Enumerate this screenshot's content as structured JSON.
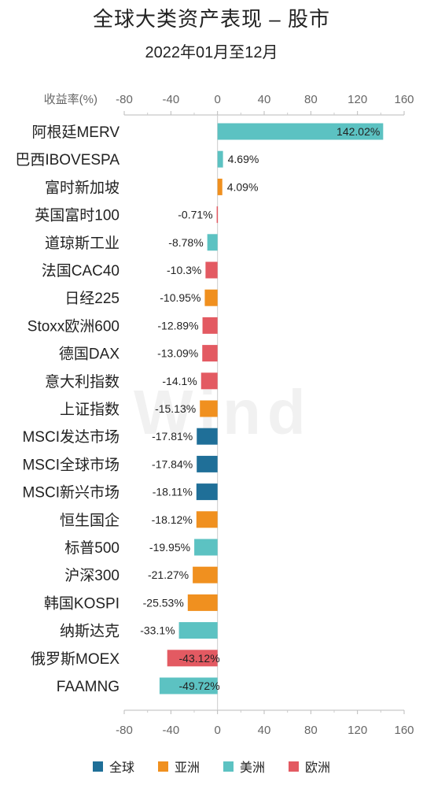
{
  "title": "全球大类资产表现 – 股市",
  "subtitle": "2022年01月至12月",
  "watermark": "Wind",
  "colors": {
    "全球": "#1f6f98",
    "亚洲": "#f0901f",
    "美洲": "#5cc2c2",
    "欧洲": "#e35a62"
  },
  "chart_data": {
    "type": "bar",
    "orientation": "horizontal",
    "title": "全球大类资产表现 – 股市",
    "subtitle": "2022年01月至12月",
    "xlabel": "收益率(%)",
    "xlim": [
      -80,
      160
    ],
    "xticks": [
      -80,
      -40,
      0,
      40,
      80,
      120,
      160
    ],
    "legend_position": "bottom",
    "legend": [
      "全球",
      "亚洲",
      "美洲",
      "欧洲"
    ],
    "bars": [
      {
        "name": "阿根廷MERV",
        "value": 142.02,
        "label": "142.02%",
        "group": "美洲"
      },
      {
        "name": "巴西IBOVESPA",
        "value": 4.69,
        "label": "4.69%",
        "group": "美洲"
      },
      {
        "name": "富时新加坡",
        "value": 4.09,
        "label": "4.09%",
        "group": "亚洲"
      },
      {
        "name": "英国富时100",
        "value": -0.71,
        "label": "-0.71%",
        "group": "欧洲"
      },
      {
        "name": "道琼斯工业",
        "value": -8.78,
        "label": "-8.78%",
        "group": "美洲"
      },
      {
        "name": "法国CAC40",
        "value": -10.3,
        "label": "-10.3%",
        "group": "欧洲"
      },
      {
        "name": "日经225",
        "value": -10.95,
        "label": "-10.95%",
        "group": "亚洲"
      },
      {
        "name": "Stoxx欧洲600",
        "value": -12.89,
        "label": "-12.89%",
        "group": "欧洲"
      },
      {
        "name": "德国DAX",
        "value": -13.09,
        "label": "-13.09%",
        "group": "欧洲"
      },
      {
        "name": "意大利指数",
        "value": -14.1,
        "label": "-14.1%",
        "group": "欧洲"
      },
      {
        "name": "上证指数",
        "value": -15.13,
        "label": "-15.13%",
        "group": "亚洲"
      },
      {
        "name": "MSCI发达市场",
        "value": -17.81,
        "label": "-17.81%",
        "group": "全球"
      },
      {
        "name": "MSCI全球市场",
        "value": -17.84,
        "label": "-17.84%",
        "group": "全球"
      },
      {
        "name": "MSCI新兴市场",
        "value": -18.11,
        "label": "-18.11%",
        "group": "全球"
      },
      {
        "name": "恒生国企",
        "value": -18.12,
        "label": "-18.12%",
        "group": "亚洲"
      },
      {
        "name": "标普500",
        "value": -19.95,
        "label": "-19.95%",
        "group": "美洲"
      },
      {
        "name": "沪深300",
        "value": -21.27,
        "label": "-21.27%",
        "group": "亚洲"
      },
      {
        "name": "韩国KOSPI",
        "value": -25.53,
        "label": "-25.53%",
        "group": "亚洲"
      },
      {
        "name": "纳斯达克",
        "value": -33.1,
        "label": "-33.1%",
        "group": "美洲"
      },
      {
        "name": "俄罗斯MOEX",
        "value": -43.12,
        "label": "-43.12%",
        "group": "欧洲"
      },
      {
        "name": "FAAMNG",
        "value": -49.72,
        "label": "-49.72%",
        "group": "美洲"
      }
    ]
  }
}
